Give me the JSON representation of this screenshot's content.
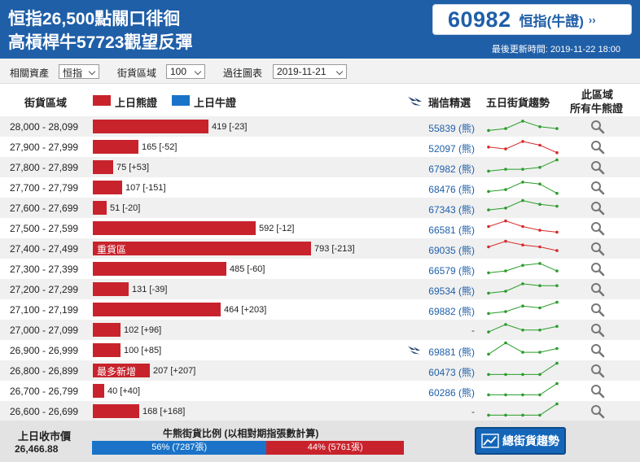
{
  "header": {
    "line1": "恒指26,500點關口徘徊",
    "line2": "高槓桿牛57723觀望反彈",
    "quote_number": "60982",
    "quote_label": "恒指(牛證)",
    "quote_arrow": "››",
    "update_time": "最後更新時間: 2019-11-22 18:00"
  },
  "filters": {
    "asset_label": "相關資產",
    "asset_value": "恒指",
    "zone_label": "街貨區域",
    "zone_value": "100",
    "history_label": "過往圖表",
    "history_value": "2019-11-21"
  },
  "columns": {
    "zone": "街貨區域",
    "bear_legend": "上日熊證",
    "bull_legend": "上日牛證",
    "featured": "瑞信精選",
    "trend": "五日街貨趨勢",
    "all_line1": "此區域",
    "all_line2": "所有牛熊證"
  },
  "colors": {
    "bear": "#c8232c",
    "bull": "#1a73c8",
    "header": "#1f5fa8",
    "up": "#2a9d2a",
    "down": "#d62b2b"
  },
  "bar_max": 793,
  "rows": [
    {
      "range": "28,000 - 28,099",
      "value": 419,
      "change": "419 [-23]",
      "code": "55839 (熊)",
      "trend": [
        2,
        3,
        7,
        4,
        3
      ],
      "trend_color": "up",
      "featured": false,
      "tag": ""
    },
    {
      "range": "27,900 - 27,999",
      "value": 165,
      "change": "165 [-52]",
      "code": "52097 (熊)",
      "trend": [
        4,
        3,
        7,
        5,
        1
      ],
      "trend_color": "down",
      "featured": false,
      "tag": ""
    },
    {
      "range": "27,800 - 27,899",
      "value": 75,
      "change": "75 [+53]",
      "code": "67982 (熊)",
      "trend": [
        2,
        3,
        3,
        4,
        8
      ],
      "trend_color": "up",
      "featured": false,
      "tag": ""
    },
    {
      "range": "27,700 - 27,799",
      "value": 107,
      "change": "107 [-151]",
      "code": "68476 (熊)",
      "trend": [
        2,
        3,
        7,
        6,
        1
      ],
      "trend_color": "up",
      "featured": false,
      "tag": ""
    },
    {
      "range": "27,600 - 27,699",
      "value": 51,
      "change": "51 [-20]",
      "code": "67343 (熊)",
      "trend": [
        3,
        4,
        8,
        6,
        5
      ],
      "trend_color": "up",
      "featured": false,
      "tag": ""
    },
    {
      "range": "27,500 - 27,599",
      "value": 592,
      "change": "592 [-12]",
      "code": "66581 (熊)",
      "trend": [
        5,
        8,
        5,
        3,
        2
      ],
      "trend_color": "down",
      "featured": false,
      "tag": ""
    },
    {
      "range": "27,400 - 27,499",
      "value": 793,
      "change": "793 [-213]",
      "code": "69035 (熊)",
      "trend": [
        5,
        8,
        6,
        5,
        3
      ],
      "trend_color": "down",
      "featured": false,
      "tag": "重貨區"
    },
    {
      "range": "27,300 - 27,399",
      "value": 485,
      "change": "485 [-60]",
      "code": "66579 (熊)",
      "trend": [
        2,
        3,
        6,
        7,
        3
      ],
      "trend_color": "up",
      "featured": false,
      "tag": ""
    },
    {
      "range": "27,200 - 27,299",
      "value": 131,
      "change": "131 [-39]",
      "code": "69534 (熊)",
      "trend": [
        2,
        3,
        7,
        6,
        6
      ],
      "trend_color": "up",
      "featured": false,
      "tag": ""
    },
    {
      "range": "27,100 - 27,199",
      "value": 464,
      "change": "464 [+203]",
      "code": "69882 (熊)",
      "trend": [
        2,
        3,
        6,
        5,
        8
      ],
      "trend_color": "up",
      "featured": false,
      "tag": ""
    },
    {
      "range": "27,000 - 27,099",
      "value": 102,
      "change": "102 [+96]",
      "code": "-",
      "trend": [
        3,
        7,
        4,
        4,
        6
      ],
      "trend_color": "up",
      "featured": false,
      "tag": ""
    },
    {
      "range": "26,900 - 26,999",
      "value": 100,
      "change": "100 [+85]",
      "code": "69881 (熊)",
      "trend": [
        2,
        8,
        3,
        3,
        5
      ],
      "trend_color": "up",
      "featured": true,
      "tag": ""
    },
    {
      "range": "26,800 - 26,899",
      "value": 207,
      "change": "207 [+207]",
      "code": "60473 (熊)",
      "trend": [
        2,
        2,
        2,
        2,
        8
      ],
      "trend_color": "up",
      "featured": false,
      "tag": "最多新增"
    },
    {
      "range": "26,700 - 26,799",
      "value": 40,
      "change": "40 [+40]",
      "code": "60286 (熊)",
      "trend": [
        2,
        2,
        2,
        2,
        8
      ],
      "trend_color": "up",
      "featured": false,
      "tag": ""
    },
    {
      "range": "26,600 - 26,699",
      "value": 168,
      "change": "168 [+168]",
      "code": "-",
      "trend": [
        2,
        2,
        2,
        2,
        8
      ],
      "trend_color": "up",
      "featured": false,
      "tag": ""
    }
  ],
  "footer": {
    "prev_close_label": "上日收市價",
    "prev_close_value": "26,466.88",
    "ratio_title": "牛熊街貨比例 (以相對期指張數計算)",
    "bull_ratio": 0.56,
    "bull_text": "56% (7287張)",
    "bear_text": "44% (5761張)",
    "trend_button": "總街貨趨勢"
  }
}
